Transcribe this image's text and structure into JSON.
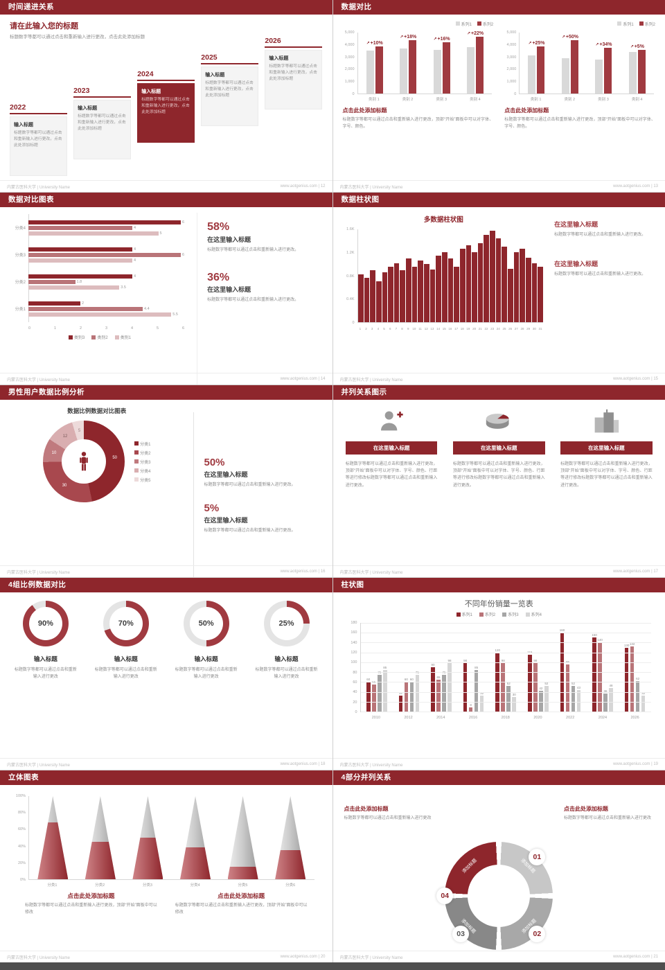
{
  "colors": {
    "primary_dark": "#8e262c",
    "primary": "#a03a40",
    "mid": "#b97478",
    "light": "#d9aeb0",
    "pale": "#eddada",
    "gray_bar": "#d9d9d9",
    "gray_mid": "#a6a6a6",
    "gray_light": "#d6d6d6",
    "text_gray": "#8c8c8c",
    "text_dark": "#404040"
  },
  "footer": {
    "org": "内蒙古医科大学 | University Name"
  },
  "slides": {
    "s12": {
      "no": "12",
      "title": "时间递进关系",
      "footer_right": "www.aotgenius.com | 12",
      "heading": "请在此输入您的标题",
      "intro": "标题数字等都可以通过点击和重新输入进行更改，点击此处添加标题",
      "step_label": "输入标题",
      "step_text": "标题数字等都可以通过点击和重新输入进行更改，点击此处添加标题",
      "steps": [
        {
          "year": "2022"
        },
        {
          "year": "2023"
        },
        {
          "year": "2024"
        },
        {
          "year": "2025"
        },
        {
          "year": "2026"
        }
      ]
    },
    "s13": {
      "no": "13",
      "title": "数据对比",
      "footer_right": "www.aotgenius.com | 13",
      "panels": [
        {
          "caption": "点击此处添加标题",
          "body": "标题数字等都可以通过点击和重新输入进行更改，顶部“开始”面板中可以对字体、字号、颜色。"
        },
        {
          "caption": "点击此处添加标题",
          "body": "标题数字等都可以通过点击和重新输入进行更改，顶部“开始”面板中可以对字体、字号、颜色。"
        }
      ]
    },
    "s14": {
      "no": "14",
      "title": "数据对比图表",
      "footer_right": "www.aotgenius.com | 14",
      "blocks": [
        {
          "pct": "58%",
          "t": "在这里输入标题",
          "p": "标题数字等都可以通过点击和重新输入进行更改。"
        },
        {
          "pct": "36%",
          "t": "在这里输入标题",
          "p": "标题数字等都可以通过点击和重新输入进行更改。"
        }
      ]
    },
    "s15": {
      "no": "15",
      "title": "数据柱状图",
      "footer_right": "www.aotgenius.com | 15",
      "blocks": [
        {
          "t": "在这里输入标题",
          "p": "标题数字等都可以通过点击和重新输入进行更改。"
        },
        {
          "t": "在这里输入标题",
          "p": "标题数字等都可以通过点击和重新输入进行更改。"
        }
      ]
    },
    "s16": {
      "no": "16",
      "title": "男性用户数据比例分析",
      "footer_right": "www.aotgenius.com | 16",
      "chart_title": "数据比例数据对比图表",
      "blocks": [
        {
          "pct": "50%",
          "t": "在这里输入标题",
          "p": "标题数字等都可以通过点击和重新输入进行更改。"
        },
        {
          "pct": "5%",
          "t": "在这里输入标题",
          "p": "标题数字等都可以通过点击和重新输入进行更改。"
        }
      ]
    },
    "s17": {
      "no": "17",
      "title": "并列关系图示",
      "footer_right": "www.aotgenius.com | 17",
      "btn": "在这里输入标题",
      "body": "标题数字等都可以通过点击和重新输入进行更改，顶部“开始”面板中可以对字体、字号、颜色、行距等进行修改标题数字等都可以通过点击和重新输入进行更改。",
      "icons": [
        "person-add-icon",
        "pie-chart-3d-icon",
        "building-icon"
      ]
    },
    "s18": {
      "no": "18",
      "title": "4组比例数据对比",
      "footer_right": "www.aotgenius.com | 18",
      "label": "输入标题",
      "body": "标题数字等都可以通过点击和重新输入进行更改"
    },
    "s19": {
      "no": "19",
      "title": "柱状图",
      "footer_right": "www.aotgenius.com | 19"
    },
    "s20": {
      "no": "20",
      "title": "立体图表",
      "footer_right": "www.aotgenius.com | 20",
      "blocks": [
        {
          "t": "点击此处添加标题",
          "p": "标题数字等都可以通过点击和重新输入进行更改，顶部“开始”面板中可以修改"
        },
        {
          "t": "点击此处添加标题",
          "p": "标题数字等都可以通过点击和重新输入进行更改，顶部“开始”面板中可以修改"
        }
      ]
    },
    "s21": {
      "no": "21",
      "title": "4部分并列关系",
      "footer_right": "www.aotgenius.com | 21",
      "corner_title": "点击此处添加标题",
      "corner_body": "标题数字等都可以通过点击和重新输入进行更改"
    }
  },
  "chart_data": [
    {
      "slide": "13",
      "position": "left",
      "type": "vbar2",
      "arrow": "↗",
      "categories": [
        "类别 1",
        "类别 2",
        "类别 3",
        "类别 4"
      ],
      "ymax": 5000,
      "yticks": [
        "5,000",
        "4,000",
        "3,000",
        "2,000",
        "1,000",
        "0"
      ],
      "series": [
        {
          "name": "系列1",
          "color": "#d9d9d9",
          "values": [
            3500,
            3700,
            3600,
            3800
          ]
        },
        {
          "name": "系列2",
          "color": "#a03a40",
          "values": [
            3850,
            4370,
            4180,
            4640
          ]
        }
      ],
      "growth": [
        "+10%",
        "+18%",
        "+16%",
        "+22%"
      ]
    },
    {
      "slide": "13",
      "position": "right",
      "type": "vbar2",
      "arrow": "↗",
      "categories": [
        "类别 1",
        "类别 2",
        "类别 3",
        "类别 4"
      ],
      "ymax": 5000,
      "yticks": [
        "5,000",
        "4,000",
        "3,000",
        "2,000",
        "1,000",
        "0"
      ],
      "series": [
        {
          "name": "系列1",
          "color": "#d9d9d9",
          "values": [
            3100,
            2900,
            2800,
            3400
          ]
        },
        {
          "name": "系列2",
          "color": "#a03a40",
          "values": [
            3880,
            4350,
            3750,
            3570
          ]
        }
      ],
      "growth": [
        "+25%",
        "+50%",
        "+34%",
        "+5%"
      ]
    },
    {
      "slide": "14",
      "type": "hbar",
      "xmax": 6,
      "xticks": [
        "0",
        "1",
        "2",
        "3",
        "4",
        "5",
        "6"
      ],
      "series": [
        {
          "name": "类别3",
          "color": "#8e262c"
        },
        {
          "name": "类别2",
          "color": "#b97478"
        },
        {
          "name": "类别1",
          "color": "#ddbcbe"
        }
      ],
      "groups": [
        {
          "label": "分类4",
          "values": [
            6,
            4,
            5
          ]
        },
        {
          "label": "分类3",
          "values": [
            4,
            6,
            4
          ]
        },
        {
          "label": "分类2",
          "values": [
            4,
            1.8,
            3.5
          ]
        },
        {
          "label": "分类1",
          "values": [
            2,
            4.4,
            5.5
          ]
        }
      ]
    },
    {
      "slide": "15",
      "type": "cols",
      "title": "多数据柱状图",
      "color": "#8e262c",
      "ymax": 1600,
      "yticks": [
        "1.6K",
        "1.2K",
        "0.8K",
        "0.4K",
        "0"
      ],
      "x": [
        "1",
        "2",
        "3",
        "4",
        "5",
        "6",
        "7",
        "8",
        "9",
        "10",
        "11",
        "12",
        "13",
        "14",
        "15",
        "16",
        "17",
        "18",
        "19",
        "20",
        "21",
        "22",
        "23",
        "24",
        "25",
        "26",
        "27",
        "28",
        "29",
        "30",
        "31"
      ],
      "values": [
        820,
        760,
        900,
        700,
        860,
        950,
        1010,
        900,
        1100,
        960,
        1060,
        1000,
        910,
        1150,
        1210,
        1100,
        960,
        1260,
        1320,
        1210,
        1360,
        1500,
        1580,
        1450,
        1300,
        920,
        1210,
        1260,
        1110,
        1010,
        950
      ]
    },
    {
      "slide": "16",
      "type": "donut",
      "labels": [
        "分类1",
        "分类2",
        "分类3",
        "分类4",
        "分类5"
      ],
      "values": [
        50,
        30,
        10,
        12,
        5
      ],
      "colors": [
        "#8e262c",
        "#a8484e",
        "#c07a7e",
        "#d9aeb0",
        "#eddada"
      ],
      "label_colors": [
        "#ffffff",
        "#ffffff",
        "#ffffff",
        "#7a5a5b",
        "#9c8283"
      ]
    },
    {
      "slide": "18",
      "type": "gauge",
      "values": [
        90,
        70,
        50,
        25
      ],
      "color": "#a03a40",
      "track": "#e4e4e4"
    },
    {
      "slide": "19",
      "type": "grouped",
      "title": "不同年份销量一览表",
      "ymax": 180,
      "yticks": [
        "180",
        "160",
        "140",
        "120",
        "100",
        "80",
        "60",
        "40",
        "20",
        "0"
      ],
      "categories": [
        "2010",
        "2012",
        "2014",
        "2016",
        "2018",
        "2020",
        "2022",
        "2024",
        "2026"
      ],
      "series": [
        {
          "name": "系列1",
          "color": "#8e262c",
          "values": [
            60,
            32,
            90,
            98,
            120,
            115,
            160,
            150,
            130
          ]
        },
        {
          "name": "系列2",
          "color": "#b97478",
          "values": [
            55,
            60,
            65,
            8,
            98,
            98,
            95,
            140,
            132
          ]
        },
        {
          "name": "系列3",
          "color": "#a6a6a6",
          "values": [
            75,
            60,
            75,
            85,
            52,
            42,
            52,
            36,
            62
          ]
        },
        {
          "name": "系列4",
          "color": "#d6d6d6",
          "values": [
            85,
            75,
            98,
            32,
            30,
            52,
            43,
            48,
            32
          ]
        }
      ]
    },
    {
      "slide": "20",
      "type": "cones",
      "yticks": [
        "100%",
        "80%",
        "60%",
        "40%",
        "20%",
        "0%"
      ],
      "items": [
        {
          "label": "分类1",
          "fill": 68
        },
        {
          "label": "分类2",
          "fill": 45
        },
        {
          "label": "分类3",
          "fill": 50
        },
        {
          "label": "分类4",
          "fill": 38
        },
        {
          "label": "分类5",
          "fill": 15
        },
        {
          "label": "分类6",
          "fill": 35
        }
      ]
    },
    {
      "slide": "21",
      "type": "ring",
      "segments": [
        {
          "label": "添加标题",
          "color": "#c7c7c7"
        },
        {
          "label": "添加标题",
          "color": "#a8a8a8"
        },
        {
          "label": "添加标题",
          "color": "#888888"
        },
        {
          "label": "添加标题",
          "color": "#8e262c"
        }
      ],
      "parts": [
        {
          "no": "01",
          "color": "#8e262c"
        },
        {
          "no": "02",
          "color": "#8e262c"
        },
        {
          "no": "03",
          "color": "#555555"
        },
        {
          "no": "04",
          "color": "#8e262c"
        }
      ]
    }
  ]
}
